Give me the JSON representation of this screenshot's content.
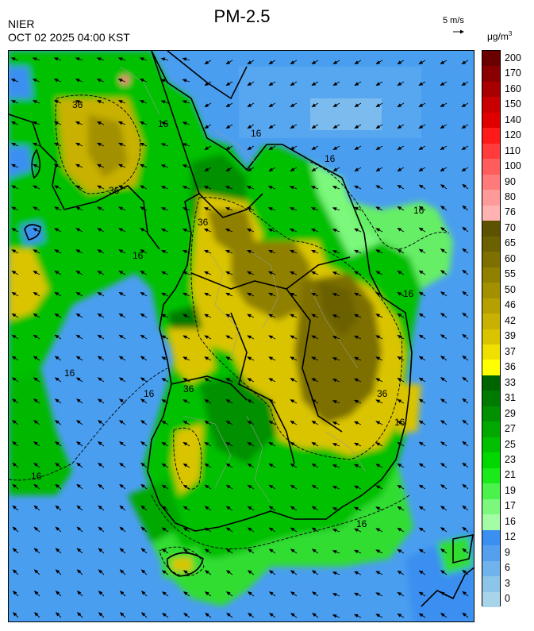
{
  "header": {
    "agency": "NIER",
    "datetime": "OCT 02 2025 04:00 KST",
    "title": "PM-2.5"
  },
  "wind_reference": {
    "label": "5 m/s"
  },
  "unit": {
    "base": "μg/m",
    "exponent": "3"
  },
  "map": {
    "contour_labels": [
      "36",
      "16",
      "16",
      "16",
      "36",
      "36",
      "16",
      "16",
      "16",
      "16",
      "16",
      "36",
      "16",
      "16",
      "36",
      "16"
    ]
  },
  "legend": {
    "levels": [
      {
        "label": "200",
        "color": "#6b0000"
      },
      {
        "label": "170",
        "color": "#8a0000"
      },
      {
        "label": "160",
        "color": "#a80000"
      },
      {
        "label": "150",
        "color": "#c80000"
      },
      {
        "label": "140",
        "color": "#e00000"
      },
      {
        "label": "120",
        "color": "#ff1a1a"
      },
      {
        "label": "110",
        "color": "#ff3b3b"
      },
      {
        "label": "100",
        "color": "#ff5c5c"
      },
      {
        "label": "90",
        "color": "#ff7a7a"
      },
      {
        "label": "80",
        "color": "#ff9a9a"
      },
      {
        "label": "76",
        "color": "#ffb2b2"
      },
      {
        "label": "70",
        "color": "#5c5200"
      },
      {
        "label": "65",
        "color": "#6b6100"
      },
      {
        "label": "60",
        "color": "#7d7000"
      },
      {
        "label": "55",
        "color": "#8f8000"
      },
      {
        "label": "50",
        "color": "#a39000"
      },
      {
        "label": "46",
        "color": "#b5a000"
      },
      {
        "label": "42",
        "color": "#c8b100"
      },
      {
        "label": "39",
        "color": "#dac400"
      },
      {
        "label": "37",
        "color": "#efe000"
      },
      {
        "label": "36",
        "color": "#ffff00"
      },
      {
        "label": "33",
        "color": "#006400"
      },
      {
        "label": "31",
        "color": "#007a00"
      },
      {
        "label": "29",
        "color": "#009000"
      },
      {
        "label": "27",
        "color": "#00a800"
      },
      {
        "label": "25",
        "color": "#00c000"
      },
      {
        "label": "23",
        "color": "#00d800"
      },
      {
        "label": "21",
        "color": "#1aea1a"
      },
      {
        "label": "19",
        "color": "#4cf24c"
      },
      {
        "label": "17",
        "color": "#7cf87c"
      },
      {
        "label": "16",
        "color": "#a4fca4"
      },
      {
        "label": "12",
        "color": "#3a8ff0"
      },
      {
        "label": "9",
        "color": "#55a0ee"
      },
      {
        "label": "6",
        "color": "#70b2ec"
      },
      {
        "label": "3",
        "color": "#8cc4ea"
      },
      {
        "label": "0",
        "color": "#a8d4ea"
      }
    ]
  }
}
